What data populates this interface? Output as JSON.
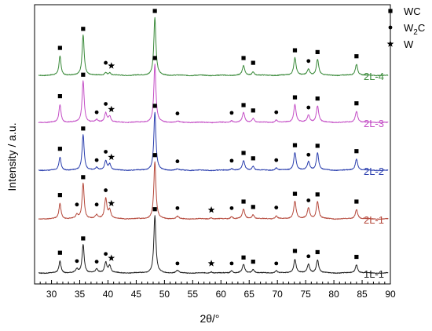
{
  "chart_data": {
    "type": "line",
    "xlabel": "2θ/°",
    "ylabel": "Intensity / a.u.",
    "xlim": [
      27,
      90
    ],
    "x_ticks": [
      30,
      35,
      40,
      45,
      50,
      55,
      60,
      65,
      70,
      75,
      80,
      85,
      90
    ],
    "grid": false,
    "legend_placement": "top-right",
    "legend": [
      {
        "symbol": "square",
        "label": "WC",
        "label_base": "WC",
        "label_sub": "",
        "label_tail": ""
      },
      {
        "symbol": "circle",
        "label": "W2C",
        "label_base": "W",
        "label_sub": "2",
        "label_tail": "C"
      },
      {
        "symbol": "star",
        "label": "W",
        "label_base": "W",
        "label_sub": "",
        "label_tail": ""
      }
    ],
    "peaks": {
      "WC": [
        31.5,
        35.6,
        48.3,
        64.0,
        65.7,
        73.1,
        77.1,
        84.0
      ],
      "W2C": [
        34.5,
        38.0,
        39.6,
        52.3,
        61.9,
        69.8,
        75.5
      ],
      "W": [
        40.3,
        58.3
      ]
    },
    "series": [
      {
        "name": "2L-4",
        "color": "#3a8a3a",
        "peaks": [
          [
            31.5,
            0.32,
            0.22
          ],
          [
            35.6,
            0.68,
            0.22
          ],
          [
            39.6,
            0.05,
            0.25
          ],
          [
            40.3,
            0.04,
            0.25
          ],
          [
            48.3,
            0.97,
            0.22
          ],
          [
            64.0,
            0.16,
            0.25
          ],
          [
            65.7,
            0.06,
            0.25
          ],
          [
            73.1,
            0.3,
            0.25
          ],
          [
            75.5,
            0.1,
            0.25
          ],
          [
            77.1,
            0.27,
            0.25
          ],
          [
            84.0,
            0.19,
            0.25
          ]
        ],
        "markers": [
          {
            "symbol": "square",
            "x": 31.5,
            "h": 0.42
          },
          {
            "symbol": "square",
            "x": 35.6,
            "h": 0.74
          },
          {
            "symbol": "circle",
            "x": 39.6,
            "h": 0.17
          },
          {
            "symbol": "star",
            "x": 40.6,
            "h": 0.12
          },
          {
            "symbol": "square",
            "x": 48.3,
            "h": 1.04
          },
          {
            "symbol": "square",
            "x": 64.0,
            "h": 0.25
          },
          {
            "symbol": "square",
            "x": 65.7,
            "h": 0.17
          },
          {
            "symbol": "square",
            "x": 73.1,
            "h": 0.38
          },
          {
            "symbol": "circle",
            "x": 75.5,
            "h": 0.2
          },
          {
            "symbol": "square",
            "x": 77.1,
            "h": 0.35
          },
          {
            "symbol": "square",
            "x": 84.0,
            "h": 0.28
          }
        ]
      },
      {
        "name": "2L-3",
        "color": "#c44fc6",
        "peaks": [
          [
            31.5,
            0.3,
            0.22
          ],
          [
            35.6,
            0.7,
            0.22
          ],
          [
            38.0,
            0.04,
            0.25
          ],
          [
            39.6,
            0.16,
            0.25
          ],
          [
            40.3,
            0.1,
            0.25
          ],
          [
            48.3,
            0.97,
            0.22
          ],
          [
            52.3,
            0.02,
            0.25
          ],
          [
            61.9,
            0.03,
            0.25
          ],
          [
            64.0,
            0.16,
            0.25
          ],
          [
            65.7,
            0.07,
            0.25
          ],
          [
            69.8,
            0.04,
            0.25
          ],
          [
            73.1,
            0.3,
            0.25
          ],
          [
            75.5,
            0.12,
            0.25
          ],
          [
            77.1,
            0.28,
            0.25
          ],
          [
            84.0,
            0.19,
            0.25
          ]
        ],
        "markers": [
          {
            "symbol": "square",
            "x": 31.5,
            "h": 0.4
          },
          {
            "symbol": "square",
            "x": 35.6,
            "h": 0.76
          },
          {
            "symbol": "circle",
            "x": 38.0,
            "h": 0.13
          },
          {
            "symbol": "circle",
            "x": 39.6,
            "h": 0.27
          },
          {
            "symbol": "star",
            "x": 40.6,
            "h": 0.18
          },
          {
            "symbol": "square",
            "x": 48.3,
            "h": 1.04
          },
          {
            "symbol": "circle",
            "x": 52.3,
            "h": 0.11
          },
          {
            "symbol": "circle",
            "x": 61.9,
            "h": 0.12
          },
          {
            "symbol": "square",
            "x": 64.0,
            "h": 0.25
          },
          {
            "symbol": "square",
            "x": 65.7,
            "h": 0.16
          },
          {
            "symbol": "circle",
            "x": 69.8,
            "h": 0.13
          },
          {
            "symbol": "square",
            "x": 73.1,
            "h": 0.38
          },
          {
            "symbol": "circle",
            "x": 75.5,
            "h": 0.21
          },
          {
            "symbol": "square",
            "x": 77.1,
            "h": 0.36
          },
          {
            "symbol": "square",
            "x": 84.0,
            "h": 0.28
          }
        ]
      },
      {
        "name": "2L-2",
        "color": "#2b3fae",
        "peaks": [
          [
            31.5,
            0.22,
            0.22
          ],
          [
            35.6,
            0.6,
            0.22
          ],
          [
            38.0,
            0.04,
            0.25
          ],
          [
            39.6,
            0.16,
            0.25
          ],
          [
            40.3,
            0.1,
            0.25
          ],
          [
            48.3,
            0.97,
            0.22
          ],
          [
            52.3,
            0.02,
            0.25
          ],
          [
            61.9,
            0.03,
            0.25
          ],
          [
            64.0,
            0.16,
            0.25
          ],
          [
            65.7,
            0.07,
            0.25
          ],
          [
            69.8,
            0.04,
            0.25
          ],
          [
            73.1,
            0.3,
            0.25
          ],
          [
            75.5,
            0.14,
            0.25
          ],
          [
            77.1,
            0.29,
            0.25
          ],
          [
            84.0,
            0.19,
            0.25
          ]
        ],
        "markers": [
          {
            "symbol": "square",
            "x": 31.5,
            "h": 0.32
          },
          {
            "symbol": "square",
            "x": 35.6,
            "h": 0.66
          },
          {
            "symbol": "circle",
            "x": 38.0,
            "h": 0.13
          },
          {
            "symbol": "circle",
            "x": 39.6,
            "h": 0.27
          },
          {
            "symbol": "star",
            "x": 40.6,
            "h": 0.18
          },
          {
            "symbol": "square",
            "x": 48.3,
            "h": 1.04
          },
          {
            "symbol": "circle",
            "x": 52.3,
            "h": 0.11
          },
          {
            "symbol": "circle",
            "x": 61.9,
            "h": 0.12
          },
          {
            "symbol": "square",
            "x": 64.0,
            "h": 0.25
          },
          {
            "symbol": "square",
            "x": 65.7,
            "h": 0.16
          },
          {
            "symbol": "circle",
            "x": 69.8,
            "h": 0.13
          },
          {
            "symbol": "square",
            "x": 73.1,
            "h": 0.38
          },
          {
            "symbol": "circle",
            "x": 75.5,
            "h": 0.22
          },
          {
            "symbol": "square",
            "x": 77.1,
            "h": 0.37
          },
          {
            "symbol": "square",
            "x": 84.0,
            "h": 0.28
          }
        ]
      },
      {
        "name": "2L-1",
        "color": "#b5483b",
        "peaks": [
          [
            31.5,
            0.26,
            0.22
          ],
          [
            34.5,
            0.06,
            0.25
          ],
          [
            35.6,
            0.6,
            0.22
          ],
          [
            38.0,
            0.06,
            0.25
          ],
          [
            39.6,
            0.34,
            0.25
          ],
          [
            40.3,
            0.14,
            0.25
          ],
          [
            48.3,
            0.96,
            0.22
          ],
          [
            52.3,
            0.04,
            0.25
          ],
          [
            58.3,
            0.02,
            0.25
          ],
          [
            61.9,
            0.04,
            0.25
          ],
          [
            64.0,
            0.16,
            0.25
          ],
          [
            65.7,
            0.07,
            0.25
          ],
          [
            69.8,
            0.05,
            0.25
          ],
          [
            73.1,
            0.3,
            0.25
          ],
          [
            75.5,
            0.18,
            0.25
          ],
          [
            77.1,
            0.29,
            0.25
          ],
          [
            84.0,
            0.16,
            0.25
          ]
        ],
        "markers": [
          {
            "symbol": "square",
            "x": 31.5,
            "h": 0.36
          },
          {
            "symbol": "circle",
            "x": 34.5,
            "h": 0.2
          },
          {
            "symbol": "square",
            "x": 35.6,
            "h": 0.66
          },
          {
            "symbol": "circle",
            "x": 38.0,
            "h": 0.2
          },
          {
            "symbol": "circle",
            "x": 39.6,
            "h": 0.44
          },
          {
            "symbol": "star",
            "x": 40.6,
            "h": 0.22
          },
          {
            "symbol": "square",
            "x": 48.3,
            "h": 1.03
          },
          {
            "symbol": "circle",
            "x": 52.3,
            "h": 0.14
          },
          {
            "symbol": "star",
            "x": 58.3,
            "h": 0.11
          },
          {
            "symbol": "circle",
            "x": 61.9,
            "h": 0.14
          },
          {
            "symbol": "square",
            "x": 64.0,
            "h": 0.25
          },
          {
            "symbol": "square",
            "x": 65.7,
            "h": 0.16
          },
          {
            "symbol": "circle",
            "x": 69.8,
            "h": 0.15
          },
          {
            "symbol": "square",
            "x": 73.1,
            "h": 0.38
          },
          {
            "symbol": "circle",
            "x": 75.5,
            "h": 0.27
          },
          {
            "symbol": "square",
            "x": 77.1,
            "h": 0.37
          },
          {
            "symbol": "square",
            "x": 84.0,
            "h": 0.25
          }
        ]
      },
      {
        "name": "1L-1",
        "color": "#202020",
        "peaks": [
          [
            31.5,
            0.2,
            0.22
          ],
          [
            34.5,
            0.06,
            0.25
          ],
          [
            35.6,
            0.48,
            0.22
          ],
          [
            38.0,
            0.06,
            0.25
          ],
          [
            39.6,
            0.18,
            0.25
          ],
          [
            40.3,
            0.12,
            0.25
          ],
          [
            48.3,
            0.96,
            0.22
          ],
          [
            52.3,
            0.04,
            0.25
          ],
          [
            58.3,
            0.02,
            0.25
          ],
          [
            61.9,
            0.04,
            0.25
          ],
          [
            64.0,
            0.14,
            0.25
          ],
          [
            65.7,
            0.06,
            0.25
          ],
          [
            69.8,
            0.04,
            0.25
          ],
          [
            73.1,
            0.23,
            0.25
          ],
          [
            75.5,
            0.14,
            0.25
          ],
          [
            77.1,
            0.22,
            0.25
          ],
          [
            84.0,
            0.14,
            0.25
          ]
        ],
        "markers": [
          {
            "symbol": "square",
            "x": 31.5,
            "h": 0.3
          },
          {
            "symbol": "circle",
            "x": 34.5,
            "h": 0.16
          },
          {
            "symbol": "square",
            "x": 35.6,
            "h": 0.54
          },
          {
            "symbol": "circle",
            "x": 38.0,
            "h": 0.15
          },
          {
            "symbol": "circle",
            "x": 39.6,
            "h": 0.28
          },
          {
            "symbol": "star",
            "x": 40.6,
            "h": 0.21
          },
          {
            "symbol": "square",
            "x": 48.3,
            "h": 1.03
          },
          {
            "symbol": "circle",
            "x": 52.3,
            "h": 0.12
          },
          {
            "symbol": "star",
            "x": 58.3,
            "h": 0.12
          },
          {
            "symbol": "circle",
            "x": 61.9,
            "h": 0.12
          },
          {
            "symbol": "square",
            "x": 64.0,
            "h": 0.22
          },
          {
            "symbol": "square",
            "x": 65.7,
            "h": 0.15
          },
          {
            "symbol": "circle",
            "x": 69.8,
            "h": 0.12
          },
          {
            "symbol": "square",
            "x": 73.1,
            "h": 0.33
          },
          {
            "symbol": "circle",
            "x": 75.5,
            "h": 0.24
          },
          {
            "symbol": "square",
            "x": 77.1,
            "h": 0.31
          },
          {
            "symbol": "square",
            "x": 84.0,
            "h": 0.23
          }
        ]
      }
    ]
  }
}
